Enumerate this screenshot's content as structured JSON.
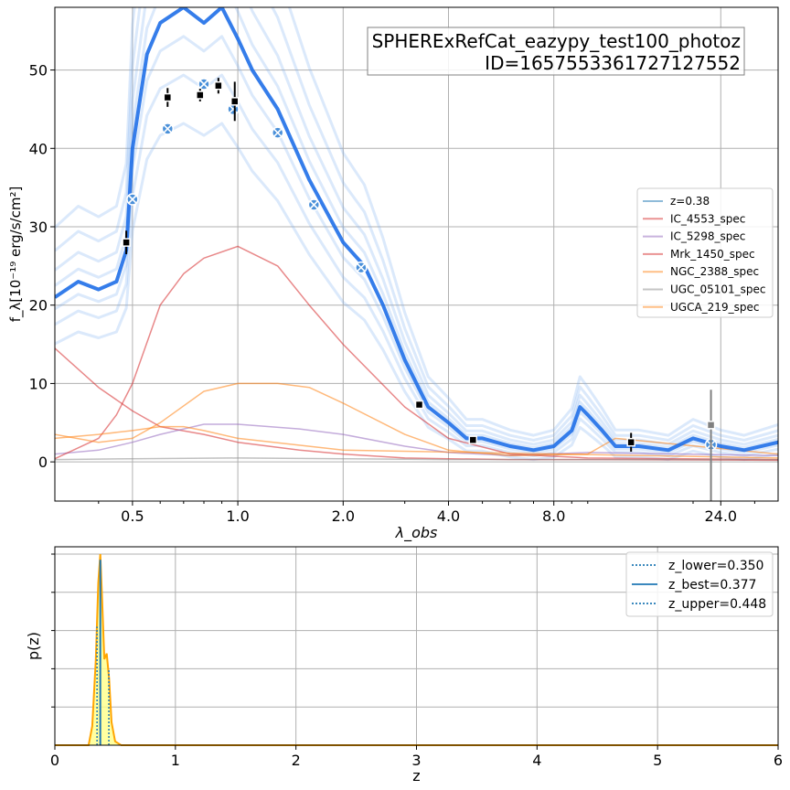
{
  "chart_data": [
    {
      "type": "line",
      "title_lines": [
        "SPHERExRefCat_eazypy_test100_photoz",
        "ID=1657553361727127552"
      ],
      "xlabel": "λ_obs",
      "ylabel": "f_λ[10⁻¹⁹ erg/s/cm²]",
      "xscale": "log",
      "xlim": [
        0.3,
        35
      ],
      "ylim": [
        -5,
        58
      ],
      "xticks": [
        0.5,
        1.0,
        2.0,
        4.0,
        8.0,
        24.0
      ],
      "xtick_labels": [
        "0.5",
        "1.0",
        "2.0",
        "4.0",
        "8.0",
        "24.0"
      ],
      "yticks": [
        0,
        10,
        20,
        30,
        40,
        50
      ],
      "ytick_labels": [
        "0",
        "10",
        "20",
        "30",
        "40",
        "50"
      ],
      "grid": true,
      "legend_position": "center-right",
      "legend": [
        {
          "label": "z=0.38",
          "color": "#1f77b4"
        },
        {
          "label": "IC_4553_spec",
          "color": "#d62728"
        },
        {
          "label": "IC_5298_spec",
          "color": "#9467bd"
        },
        {
          "label": "Mrk_1450_spec",
          "color": "#d62728"
        },
        {
          "label": "NGC_2388_spec",
          "color": "#ff7f0e"
        },
        {
          "label": "UGC_05101_spec",
          "color": "#8c8c8c"
        },
        {
          "label": "UGCA_219_spec",
          "color": "#ff7f0e"
        }
      ],
      "best_fit_sed": {
        "color": "#1f6fe8",
        "x": [
          0.3,
          0.35,
          0.4,
          0.45,
          0.48,
          0.5,
          0.55,
          0.6,
          0.7,
          0.8,
          0.9,
          1.0,
          1.1,
          1.3,
          1.6,
          2.0,
          2.3,
          2.6,
          3.0,
          3.5,
          4.0,
          4.5,
          5.0,
          6.0,
          7.0,
          8.0,
          9.0,
          9.5,
          10.0,
          11.0,
          12.0,
          14.0,
          17.0,
          20.0,
          24.0,
          28.0,
          35.0
        ],
        "y": [
          21,
          23,
          22,
          23,
          27,
          40,
          52,
          56,
          58,
          56,
          58,
          54,
          50,
          45,
          36,
          28,
          25,
          20,
          13,
          7,
          5,
          3,
          3,
          2,
          1.5,
          2,
          4,
          7,
          6,
          4,
          2,
          2,
          1.5,
          3,
          2,
          1.5,
          2.5
        ]
      },
      "photometry": {
        "x": [
          0.48,
          0.63,
          0.78,
          0.88,
          0.98,
          3.3,
          4.7,
          13.3,
          22.5
        ],
        "y": [
          28,
          46.5,
          46.8,
          48,
          46,
          7.3,
          2.8,
          2.5,
          4.7
        ],
        "yerr": [
          1.5,
          1.2,
          0.8,
          1.0,
          2.5,
          0.5,
          0.3,
          1.2,
          4.5
        ]
      },
      "model_photometry": {
        "x": [
          0.5,
          0.63,
          0.8,
          0.97,
          1.3,
          1.65,
          2.25,
          22.5
        ],
        "y": [
          33.5,
          42.5,
          48.2,
          45,
          42,
          32.8,
          24.8,
          2.2
        ]
      },
      "templates": [
        {
          "name": "IC_4553_spec",
          "color": "#d62728",
          "x": [
            0.3,
            0.4,
            0.5,
            0.6,
            0.8,
            1.0,
            1.5,
            2.0,
            3.0,
            4.0,
            6.0,
            10.0,
            35.0
          ],
          "y": [
            14.5,
            9.5,
            6.5,
            4.5,
            3.5,
            2.5,
            1.5,
            1.0,
            0.5,
            0.4,
            0.3,
            0.3,
            0.2
          ]
        },
        {
          "name": "IC_5298_spec",
          "color": "#9467bd",
          "x": [
            0.3,
            0.4,
            0.5,
            0.6,
            0.8,
            1.0,
            1.5,
            2.0,
            3.0,
            4.0,
            6.0,
            10.0,
            35.0
          ],
          "y": [
            1.0,
            1.5,
            2.5,
            3.5,
            4.8,
            4.8,
            4.2,
            3.5,
            2.0,
            1.2,
            0.8,
            1.2,
            0.8
          ]
        },
        {
          "name": "Mrk_1450_spec",
          "color": "#d62728",
          "x": [
            0.3,
            0.4,
            0.45,
            0.5,
            0.6,
            0.7,
            0.8,
            1.0,
            1.3,
            1.6,
            2.0,
            3.0,
            4.0,
            6.0,
            10.0,
            35.0
          ],
          "y": [
            0.4,
            3.0,
            6.0,
            10.0,
            20.0,
            24.0,
            26.0,
            27.5,
            25.0,
            20.0,
            15.0,
            7.0,
            3.0,
            1.0,
            0.5,
            0.3
          ]
        },
        {
          "name": "NGC_2388_spec",
          "color": "#ff7f0e",
          "x": [
            0.3,
            0.4,
            0.5,
            0.6,
            0.8,
            1.0,
            1.3,
            1.6,
            2.0,
            3.0,
            4.0,
            6.0,
            10.0,
            12.0,
            35.0
          ],
          "y": [
            3.5,
            2.5,
            3.0,
            5.0,
            9.0,
            10.0,
            10.0,
            9.5,
            7.5,
            3.5,
            1.5,
            0.8,
            1.0,
            3.0,
            1.0
          ]
        },
        {
          "name": "UGC_05101_spec",
          "color": "#8c8c8c",
          "x": [
            0.3,
            0.5,
            1.0,
            2.0,
            4.0,
            10.0,
            35.0
          ],
          "y": [
            0.3,
            0.4,
            0.5,
            0.4,
            0.3,
            0.3,
            0.3
          ]
        },
        {
          "name": "UGCA_219_spec",
          "color": "#ff7f0e",
          "x": [
            0.3,
            0.4,
            0.5,
            0.6,
            0.7,
            0.8,
            1.0,
            2.0,
            35.0
          ],
          "y": [
            3.0,
            3.5,
            4.0,
            4.5,
            4.5,
            4.0,
            3.0,
            1.5,
            0.5
          ]
        }
      ]
    },
    {
      "type": "area",
      "xlabel": "z",
      "ylabel": "p(z)",
      "xlim": [
        0,
        6
      ],
      "xticks": [
        0,
        1,
        2,
        3,
        4,
        5,
        6
      ],
      "xtick_labels": [
        "0",
        "1",
        "2",
        "3",
        "4",
        "5",
        "6"
      ],
      "grid": true,
      "legend_position": "top-right",
      "legend": [
        {
          "label": "z_lower=0.350",
          "style": "dotted",
          "color": "#1f77b4"
        },
        {
          "label": "z_best=0.377",
          "style": "solid",
          "color": "#1f77b4"
        },
        {
          "label": "z_upper=0.448",
          "style": "dotted",
          "color": "#1f77b4"
        }
      ],
      "z_lower": 0.35,
      "z_best": 0.377,
      "z_upper": 0.448,
      "pz_curve": {
        "color": "#ffa500",
        "fill": "#ffff88",
        "x": [
          0,
          0.28,
          0.31,
          0.34,
          0.36,
          0.377,
          0.39,
          0.41,
          0.43,
          0.45,
          0.47,
          0.5,
          0.55,
          6
        ],
        "y": [
          0,
          0,
          0.1,
          0.45,
          0.85,
          1.0,
          0.8,
          0.45,
          0.48,
          0.35,
          0.12,
          0.02,
          0,
          0
        ]
      }
    }
  ]
}
